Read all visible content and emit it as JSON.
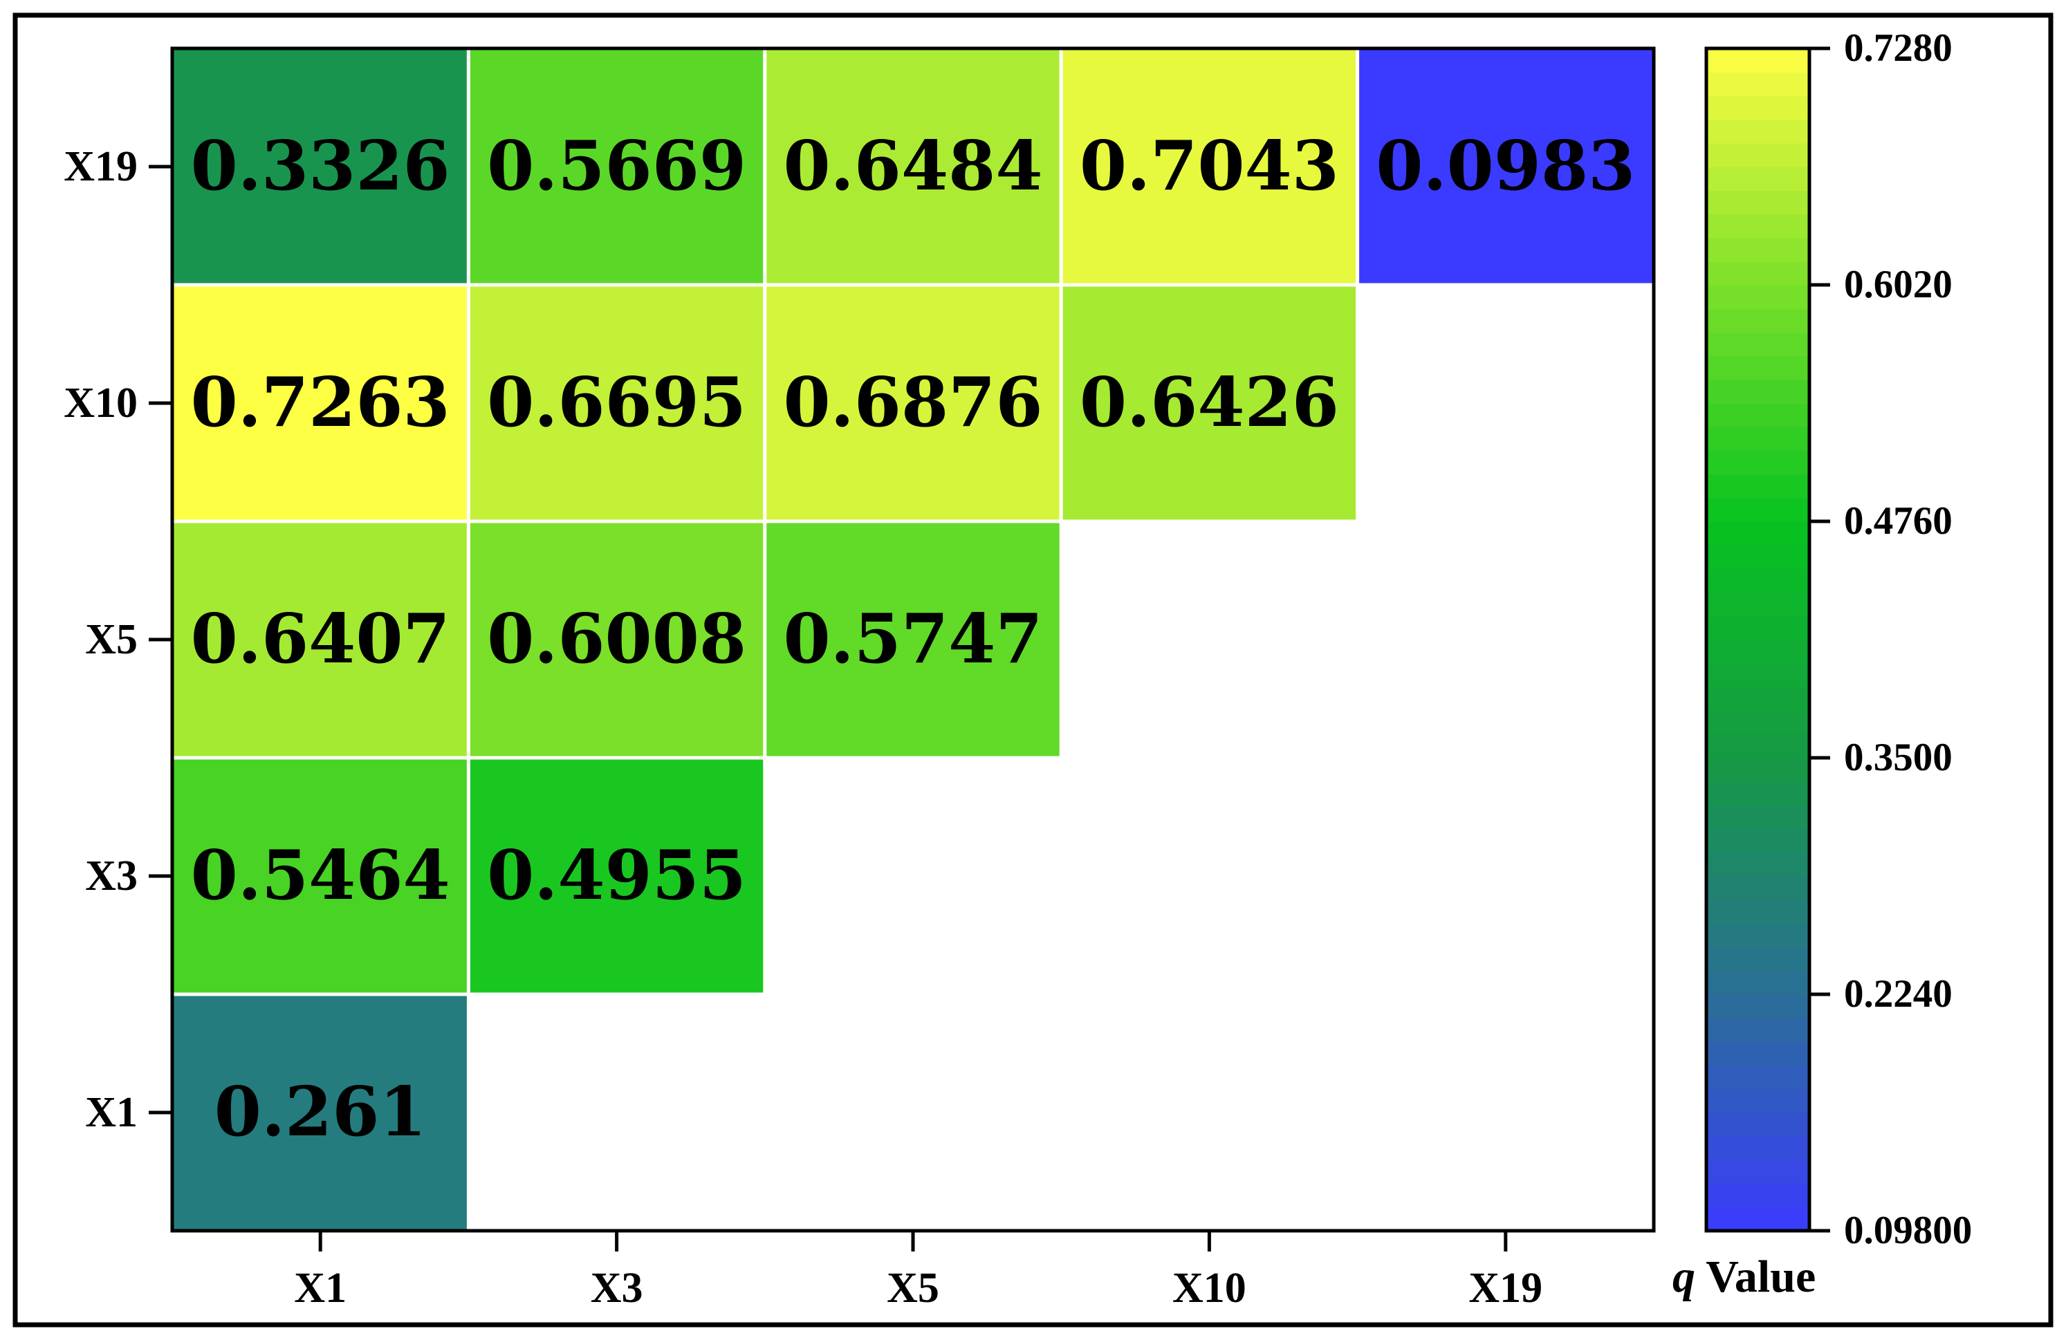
{
  "chart_data": {
    "type": "heatmap",
    "x_categories": [
      "X1",
      "X3",
      "X5",
      "X10",
      "X19"
    ],
    "y_categories": [
      "X1",
      "X3",
      "X5",
      "X10",
      "X19"
    ],
    "cells": [
      {
        "x": "X1",
        "y": "X1",
        "value": 0.261,
        "label": "0.261"
      },
      {
        "x": "X1",
        "y": "X3",
        "value": 0.5464,
        "label": "0.5464"
      },
      {
        "x": "X3",
        "y": "X3",
        "value": 0.4955,
        "label": "0.4955"
      },
      {
        "x": "X1",
        "y": "X5",
        "value": 0.6407,
        "label": "0.6407"
      },
      {
        "x": "X3",
        "y": "X5",
        "value": 0.6008,
        "label": "0.6008"
      },
      {
        "x": "X5",
        "y": "X5",
        "value": 0.5747,
        "label": "0.5747"
      },
      {
        "x": "X1",
        "y": "X10",
        "value": 0.7263,
        "label": "0.7263"
      },
      {
        "x": "X3",
        "y": "X10",
        "value": 0.6695,
        "label": "0.6695"
      },
      {
        "x": "X5",
        "y": "X10",
        "value": 0.6876,
        "label": "0.6876"
      },
      {
        "x": "X10",
        "y": "X10",
        "value": 0.6426,
        "label": "0.6426"
      },
      {
        "x": "X1",
        "y": "X19",
        "value": 0.3326,
        "label": "0.3326"
      },
      {
        "x": "X3",
        "y": "X19",
        "value": 0.5669,
        "label": "0.5669"
      },
      {
        "x": "X5",
        "y": "X19",
        "value": 0.6484,
        "label": "0.6484"
      },
      {
        "x": "X10",
        "y": "X19",
        "value": 0.7043,
        "label": "0.7043"
      },
      {
        "x": "X19",
        "y": "X19",
        "value": 0.0983,
        "label": "0.0983"
      }
    ],
    "colorbar": {
      "title_italic": "q",
      "title_rest": " Value",
      "range": [
        0.098,
        0.728
      ],
      "ticks": [
        {
          "value": 0.728,
          "label": "0.7280"
        },
        {
          "value": 0.602,
          "label": "0.6020"
        },
        {
          "value": 0.476,
          "label": "0.4760"
        },
        {
          "value": 0.35,
          "label": "0.3500"
        },
        {
          "value": 0.224,
          "label": "0.2240"
        },
        {
          "value": 0.098,
          "label": "0.09800"
        }
      ],
      "color_stops": [
        {
          "value": 0.098,
          "color": "#3b3bff"
        },
        {
          "value": 0.224,
          "color": "#2a6f96"
        },
        {
          "value": 0.35,
          "color": "#169a44"
        },
        {
          "value": 0.476,
          "color": "#08c21f"
        },
        {
          "value": 0.602,
          "color": "#7be02a"
        },
        {
          "value": 0.728,
          "color": "#ffff44"
        }
      ]
    },
    "grid": false,
    "legend": "right"
  }
}
